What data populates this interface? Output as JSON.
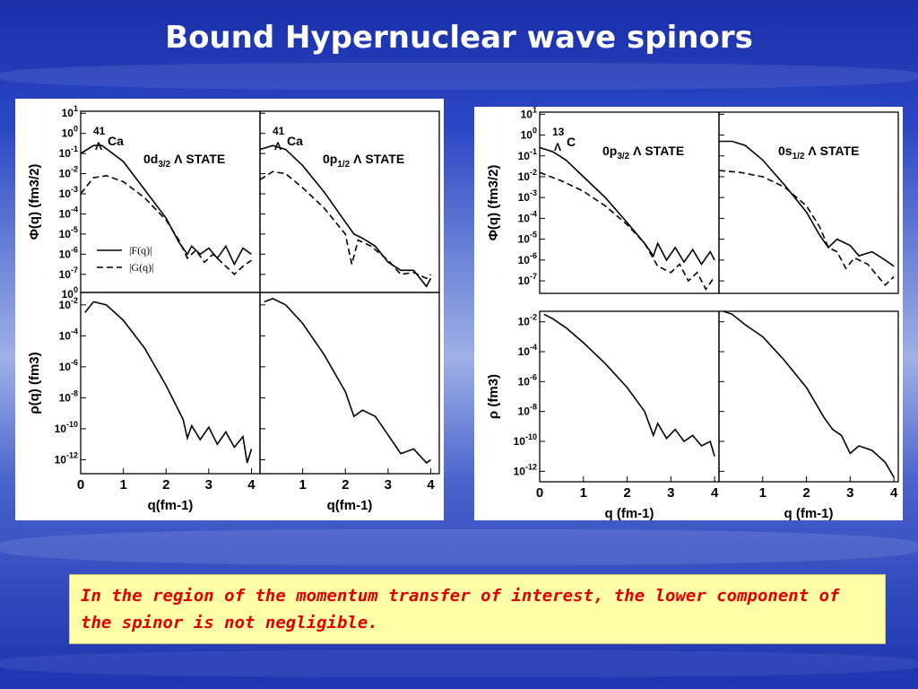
{
  "title": "Bound Hypernuclear wave spinors",
  "note": "In the region of the momentum transfer of interest, the lower component of the spinor is not negligible.",
  "chart_data": [
    {
      "type": "line",
      "figure": "left",
      "panels": [
        {
          "id": "L-phi-d",
          "label_html": "0d<sub>3/2</sub> Λ STATE",
          "nucleus": "41 Λ Ca",
          "series": [
            {
              "name": "|F(q)|",
              "style": "solid",
              "points": [
                [
                  0,
                  -1
                ],
                [
                  0.3,
                  -0.6
                ],
                [
                  0.5,
                  -0.6
                ],
                [
                  1,
                  -1.4
                ],
                [
                  1.5,
                  -2.8
                ],
                [
                  2,
                  -4.2
                ],
                [
                  2.3,
                  -5.4
                ],
                [
                  2.5,
                  -6.0
                ],
                [
                  2.6,
                  -5.6
                ],
                [
                  2.8,
                  -6.0
                ],
                [
                  3.0,
                  -5.7
                ],
                [
                  3.2,
                  -6.2
                ],
                [
                  3.4,
                  -5.6
                ],
                [
                  3.6,
                  -6.5
                ],
                [
                  3.8,
                  -5.7
                ],
                [
                  4.0,
                  -6.0
                ]
              ]
            },
            {
              "name": "|G(q)|",
              "style": "dashed",
              "points": [
                [
                  0,
                  -3
                ],
                [
                  0.3,
                  -2.2
                ],
                [
                  0.6,
                  -2.1
                ],
                [
                  1,
                  -2.4
                ],
                [
                  1.5,
                  -3.2
                ],
                [
                  2,
                  -4.3
                ],
                [
                  2.3,
                  -5.3
                ],
                [
                  2.5,
                  -6.2
                ],
                [
                  2.7,
                  -5.8
                ],
                [
                  2.9,
                  -6.4
                ],
                [
                  3.1,
                  -6.0
                ],
                [
                  3.4,
                  -6.6
                ],
                [
                  3.6,
                  -7.0
                ],
                [
                  3.8,
                  -6.6
                ],
                [
                  4.0,
                  -6.3
                ]
              ]
            }
          ]
        },
        {
          "id": "L-phi-p",
          "label_html": "0p<sub>1/2</sub> Λ STATE",
          "nucleus": "41 Λ Ca",
          "series": [
            {
              "name": "|F(q)|",
              "style": "solid",
              "points": [
                [
                  0,
                  -0.8
                ],
                [
                  0.3,
                  -0.6
                ],
                [
                  0.6,
                  -0.8
                ],
                [
                  1,
                  -1.6
                ],
                [
                  1.5,
                  -2.9
                ],
                [
                  2,
                  -4.4
                ],
                [
                  2.2,
                  -5.0
                ],
                [
                  2.4,
                  -5.2
                ],
                [
                  2.7,
                  -5.6
                ],
                [
                  3,
                  -6.4
                ],
                [
                  3.3,
                  -6.8
                ],
                [
                  3.6,
                  -6.8
                ],
                [
                  3.9,
                  -7.6
                ],
                [
                  4.0,
                  -7.2
                ]
              ]
            },
            {
              "name": "|G(q)|",
              "style": "dashed",
              "points": [
                [
                  0,
                  -2.3
                ],
                [
                  0.3,
                  -1.9
                ],
                [
                  0.6,
                  -2.0
                ],
                [
                  1,
                  -2.7
                ],
                [
                  1.5,
                  -3.7
                ],
                [
                  2,
                  -5.0
                ],
                [
                  2.15,
                  -6.5
                ],
                [
                  2.3,
                  -5.3
                ],
                [
                  2.6,
                  -5.6
                ],
                [
                  3,
                  -6.3
                ],
                [
                  3.3,
                  -7.0
                ],
                [
                  3.6,
                  -6.9
                ],
                [
                  3.9,
                  -7.2
                ],
                [
                  4.0,
                  -7.0
                ]
              ]
            }
          ]
        },
        {
          "id": "L-rho-d",
          "series": [
            {
              "name": "rho",
              "style": "solid",
              "points": [
                [
                  0.1,
                  -2.5
                ],
                [
                  0.3,
                  -1.8
                ],
                [
                  0.6,
                  -2
                ],
                [
                  1,
                  -3
                ],
                [
                  1.5,
                  -4.8
                ],
                [
                  2,
                  -7.2
                ],
                [
                  2.4,
                  -9.4
                ],
                [
                  2.5,
                  -10.6
                ],
                [
                  2.6,
                  -9.8
                ],
                [
                  2.8,
                  -10.7
                ],
                [
                  3,
                  -9.9
                ],
                [
                  3.2,
                  -11
                ],
                [
                  3.4,
                  -10.2
                ],
                [
                  3.6,
                  -11.2
                ],
                [
                  3.8,
                  -10.5
                ],
                [
                  3.9,
                  -12.2
                ],
                [
                  4,
                  -11.3
                ]
              ]
            }
          ]
        },
        {
          "id": "L-rho-p",
          "series": [
            {
              "name": "rho",
              "style": "solid",
              "points": [
                [
                  0.1,
                  -1.8
                ],
                [
                  0.3,
                  -1.6
                ],
                [
                  0.6,
                  -2.0
                ],
                [
                  1,
                  -3.2
                ],
                [
                  1.5,
                  -5.2
                ],
                [
                  2,
                  -7.6
                ],
                [
                  2.2,
                  -9.2
                ],
                [
                  2.4,
                  -8.8
                ],
                [
                  2.7,
                  -9.2
                ],
                [
                  3,
                  -10.4
                ],
                [
                  3.3,
                  -11.6
                ],
                [
                  3.6,
                  -11.3
                ],
                [
                  3.9,
                  -12.2
                ],
                [
                  4,
                  -12.0
                ]
              ]
            }
          ]
        }
      ],
      "xticks": [
        0,
        1,
        2,
        3,
        4
      ],
      "phi_yticks": [
        "10^1",
        "10^0",
        "10^-1",
        "10^-2",
        "10^-3",
        "10^-4",
        "10^-5",
        "10^-6",
        "10^-7"
      ],
      "rho_yticks": [
        "10^-2",
        "10^-4",
        "10^-6",
        "10^-8",
        "10^-10",
        "10^-12"
      ],
      "bottom_label": "10^0",
      "xlim": [
        0,
        4.2
      ],
      "phi_ylim": [
        -7.9,
        1.1
      ],
      "rho_ylim": [
        -12.9,
        -1.2
      ]
    },
    {
      "type": "line",
      "figure": "right",
      "panels": [
        {
          "id": "R-phi-p",
          "label_html": "0p<sub>3/2</sub> Λ STATE",
          "nucleus": "13 Λ C",
          "series": [
            {
              "name": "|F(q)|",
              "style": "solid",
              "points": [
                [
                  0,
                  -0.6
                ],
                [
                  0.3,
                  -0.8
                ],
                [
                  0.6,
                  -1.2
                ],
                [
                  1,
                  -2
                ],
                [
                  1.5,
                  -3
                ],
                [
                  2,
                  -4.2
                ],
                [
                  2.4,
                  -5.2
                ],
                [
                  2.6,
                  -5.8
                ],
                [
                  2.7,
                  -5.2
                ],
                [
                  2.9,
                  -6.0
                ],
                [
                  3.1,
                  -5.4
                ],
                [
                  3.3,
                  -6.1
                ],
                [
                  3.5,
                  -5.5
                ],
                [
                  3.7,
                  -6.2
                ],
                [
                  3.9,
                  -5.6
                ],
                [
                  4.0,
                  -6.0
                ]
              ]
            },
            {
              "name": "|G(q)|",
              "style": "dashed",
              "points": [
                [
                  0,
                  -1.8
                ],
                [
                  0.5,
                  -2.2
                ],
                [
                  1,
                  -2.7
                ],
                [
                  1.5,
                  -3.4
                ],
                [
                  2,
                  -4.3
                ],
                [
                  2.4,
                  -5.2
                ],
                [
                  2.7,
                  -6.3
                ],
                [
                  3,
                  -6.6
                ],
                [
                  3.2,
                  -6.2
                ],
                [
                  3.4,
                  -7.0
                ],
                [
                  3.6,
                  -6.6
                ],
                [
                  3.8,
                  -7.4
                ],
                [
                  4.0,
                  -6.8
                ]
              ]
            }
          ]
        },
        {
          "id": "R-phi-s",
          "label_html": "0s<sub>1/2</sub> Λ STATE",
          "nucleus": "",
          "series": [
            {
              "name": "|F(q)|",
              "style": "solid",
              "points": [
                [
                  0,
                  -0.3
                ],
                [
                  0.3,
                  -0.3
                ],
                [
                  0.6,
                  -0.5
                ],
                [
                  1,
                  -1.2
                ],
                [
                  1.5,
                  -2.4
                ],
                [
                  2,
                  -3.7
                ],
                [
                  2.3,
                  -4.8
                ],
                [
                  2.5,
                  -5.4
                ],
                [
                  2.7,
                  -5.0
                ],
                [
                  3,
                  -5.3
                ],
                [
                  3.2,
                  -5.8
                ],
                [
                  3.5,
                  -5.6
                ],
                [
                  3.8,
                  -6
                ],
                [
                  4.0,
                  -6.3
                ]
              ]
            },
            {
              "name": "|G(q)|",
              "style": "dashed",
              "points": [
                [
                  0,
                  -1.7
                ],
                [
                  0.5,
                  -1.8
                ],
                [
                  1,
                  -2.0
                ],
                [
                  1.5,
                  -2.5
                ],
                [
                  2,
                  -3.4
                ],
                [
                  2.3,
                  -4.4
                ],
                [
                  2.5,
                  -5.4
                ],
                [
                  2.7,
                  -5.6
                ],
                [
                  2.9,
                  -6.4
                ],
                [
                  3.1,
                  -5.9
                ],
                [
                  3.4,
                  -6.2
                ],
                [
                  3.6,
                  -6.7
                ],
                [
                  3.8,
                  -7.2
                ],
                [
                  4.0,
                  -6.8
                ]
              ]
            }
          ]
        },
        {
          "id": "R-rho-p",
          "series": [
            {
              "name": "rho",
              "style": "solid",
              "points": [
                [
                  0.1,
                  -1.5
                ],
                [
                  0.3,
                  -1.8
                ],
                [
                  0.6,
                  -2.4
                ],
                [
                  1,
                  -3.4
                ],
                [
                  1.5,
                  -4.8
                ],
                [
                  2,
                  -6.4
                ],
                [
                  2.4,
                  -8
                ],
                [
                  2.6,
                  -9.6
                ],
                [
                  2.7,
                  -8.8
                ],
                [
                  2.9,
                  -9.8
                ],
                [
                  3.1,
                  -9.2
                ],
                [
                  3.3,
                  -10
                ],
                [
                  3.5,
                  -9.6
                ],
                [
                  3.7,
                  -10.3
                ],
                [
                  3.9,
                  -10
                ],
                [
                  4,
                  -11
                ]
              ]
            }
          ]
        },
        {
          "id": "R-rho-s",
          "series": [
            {
              "name": "rho",
              "style": "solid",
              "points": [
                [
                  0.1,
                  -1.3
                ],
                [
                  0.3,
                  -1.5
                ],
                [
                  0.6,
                  -2.2
                ],
                [
                  1,
                  -3.0
                ],
                [
                  1.5,
                  -4.6
                ],
                [
                  2,
                  -6.4
                ],
                [
                  2.4,
                  -8.4
                ],
                [
                  2.6,
                  -9.2
                ],
                [
                  2.8,
                  -9.6
                ],
                [
                  3,
                  -10.8
                ],
                [
                  3.2,
                  -10.3
                ],
                [
                  3.5,
                  -10.6
                ],
                [
                  3.8,
                  -11.4
                ],
                [
                  4,
                  -12.4
                ]
              ]
            }
          ]
        }
      ],
      "xticks": [
        0,
        1,
        2,
        3,
        4
      ],
      "phi_yticks": [
        "10^1",
        "10^0",
        "10^-1",
        "10^-2",
        "10^-3",
        "10^-4",
        "10^-5",
        "10^-6",
        "10^-7"
      ],
      "rho_yticks": [
        "10^-2",
        "10^-4",
        "10^-6",
        "10^-8",
        "10^-10",
        "10^-12"
      ],
      "xlim": [
        0,
        4.1
      ],
      "phi_ylim": [
        -7.6,
        1.1
      ],
      "rho_ylim": [
        -12.7,
        -1.3
      ]
    }
  ],
  "axis_text": {
    "left_phi_ylabel": "Φ(q) (fm3/2)",
    "left_rho_ylabel": "ρ(q) (fm3)",
    "left_xlabel": "q(fm-1)",
    "right_phi_ylabel": "Φ(q) (fm3/2)",
    "right_rho_ylabel": "ρ (fm3)",
    "right_xlabel": "q (fm-1)",
    "legend_f": "|F(q)|",
    "legend_g": "|G(q)|"
  }
}
